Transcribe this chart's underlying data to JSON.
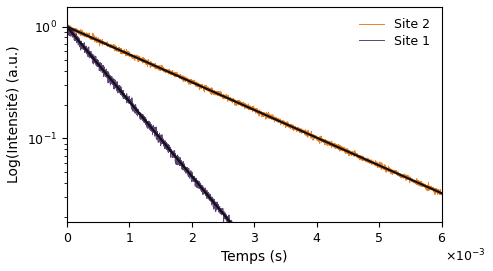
{
  "title": "",
  "xlabel": "Temps (s)",
  "ylabel": "Log(Intensité) (a.u.)",
  "xlim": [
    0,
    0.006
  ],
  "ylim_log": [
    0.018,
    1.5
  ],
  "site2_color": "#E8720C",
  "site1_color": "#4B2D6E",
  "fit_color": "#111111",
  "site1_tau": 0.00065,
  "site2_tau": 0.00175,
  "noise_amplitude_site1": 0.045,
  "noise_amplitude_site2": 0.028,
  "legend_labels": [
    "Site 2",
    "Site 1"
  ],
  "xticks": [
    0,
    0.001,
    0.002,
    0.003,
    0.004,
    0.005,
    0.006
  ],
  "xtick_labels": [
    "0",
    "1",
    "2",
    "3",
    "4",
    "5",
    "6"
  ],
  "figsize": [
    4.93,
    2.71
  ],
  "dpi": 100,
  "font_size": 10,
  "legend_fontsize": 9,
  "tick_fontsize": 9,
  "seed": 42
}
